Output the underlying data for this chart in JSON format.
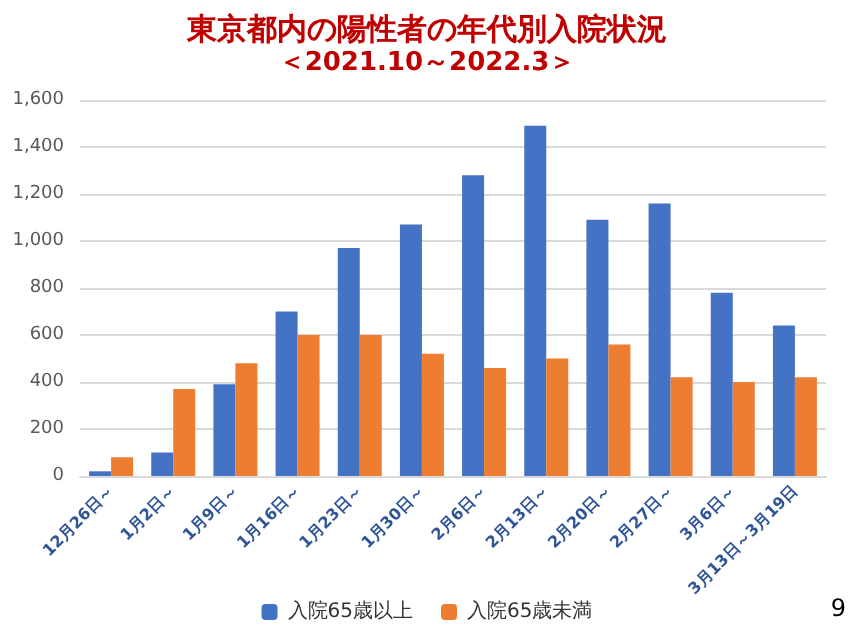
{
  "chart_data": {
    "type": "bar",
    "title": "東京都内の陽性者の年代別入院状況",
    "subtitle": "＜2021.10～2022.3＞",
    "categories": [
      "12月26日～",
      "1月2日～",
      "1月9日～",
      "1月16日～",
      "1月23日～",
      "1月30日～",
      "2月6日～",
      "2月13日～",
      "2月20日～",
      "2月27日～",
      "3月6日～",
      "3月13日～3月19日"
    ],
    "series": [
      {
        "name": "入院65歳以上",
        "color": "#4472c4",
        "values": [
          20,
          100,
          390,
          700,
          970,
          1070,
          1280,
          1490,
          1090,
          1160,
          780,
          640
        ]
      },
      {
        "name": "入院65歳未満",
        "color": "#ed7d31",
        "values": [
          80,
          370,
          480,
          600,
          600,
          520,
          460,
          500,
          560,
          420,
          400,
          420
        ]
      }
    ],
    "ylim": [
      0,
      1600
    ],
    "yticks": [
      0,
      200,
      400,
      600,
      800,
      {
        "value": 1000,
        "label": "1,000"
      },
      {
        "value": 1200,
        "label": "1,200"
      },
      {
        "value": 1400,
        "label": "1,400"
      },
      {
        "value": 1600,
        "label": "1,600"
      }
    ],
    "grid": "y",
    "legend": "bottom",
    "annotations": [
      "9"
    ]
  }
}
